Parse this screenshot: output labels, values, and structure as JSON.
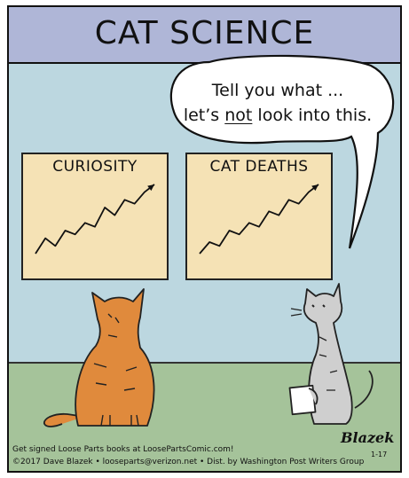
{
  "comic": {
    "title": "CAT SCIENCE",
    "speech": {
      "line1": "Tell you what ...",
      "line2_before": "let’s ",
      "line2_emphasis": "not",
      "line2_after": " look into this."
    },
    "left_chart": {
      "title": "CURIOSITY"
    },
    "right_chart": {
      "title": "CAT DEATHS"
    },
    "caption_line1": "Get signed Loose Parts books at LooseParts­Comic.com!",
    "caption_line2": "©2017 Dave Blazek • looseparts@verizon.net • Dist. by Washington Post Writers Group",
    "signature": "Blazek",
    "date": "1-17"
  },
  "chart_data": [
    {
      "type": "line",
      "title": "CURIOSITY",
      "x": [
        0,
        1,
        2,
        3,
        4,
        5,
        6,
        7,
        8,
        9,
        10,
        11,
        12
      ],
      "y": [
        1,
        3,
        2,
        4,
        3.5,
        5,
        4.5,
        7,
        6,
        8,
        7.5,
        9,
        10
      ],
      "trend": "upward"
    },
    {
      "type": "line",
      "title": "CAT DEATHS",
      "x": [
        0,
        1,
        2,
        3,
        4,
        5,
        6,
        7,
        8,
        9,
        10,
        11,
        12
      ],
      "y": [
        1,
        2.5,
        2,
        4,
        3.5,
        5,
        4.5,
        6.5,
        6,
        8,
        7.5,
        9,
        10
      ],
      "trend": "upward"
    }
  ],
  "colors": {
    "title_band": "#afb6d7",
    "wall": "#bcd7e0",
    "floor": "#a5c39a",
    "chart_paper": "#f5e2b5",
    "orange_cat": "#e08a3c",
    "gray_cat": "#cfcfcf"
  }
}
